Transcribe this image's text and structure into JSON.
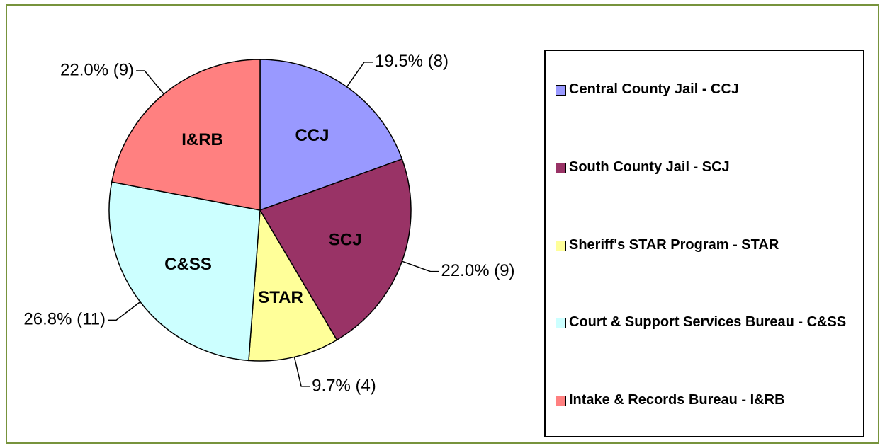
{
  "chart_data": {
    "type": "pie",
    "categories": [
      "Central County Jail - CCJ",
      "South County Jail - SCJ",
      "Sheriff's STAR Program - STAR",
      "Court & Support Services Bureau - C&SS",
      "Intake & Records Bureau - I&RB"
    ],
    "slice_labels": [
      "CCJ",
      "SCJ",
      "STAR",
      "C&SS",
      "I&RB"
    ],
    "values": [
      19.5,
      22.0,
      9.7,
      26.8,
      22.0
    ],
    "value_labels": [
      "19.5% (8)",
      "22.0% (9)",
      "9.7% (4)",
      "26.8% (11)",
      "22.0% (9)"
    ],
    "colors": [
      "#9999ff",
      "#993366",
      "#ffff99",
      "#ccffff",
      "#ff8080"
    ],
    "legend": "right"
  }
}
